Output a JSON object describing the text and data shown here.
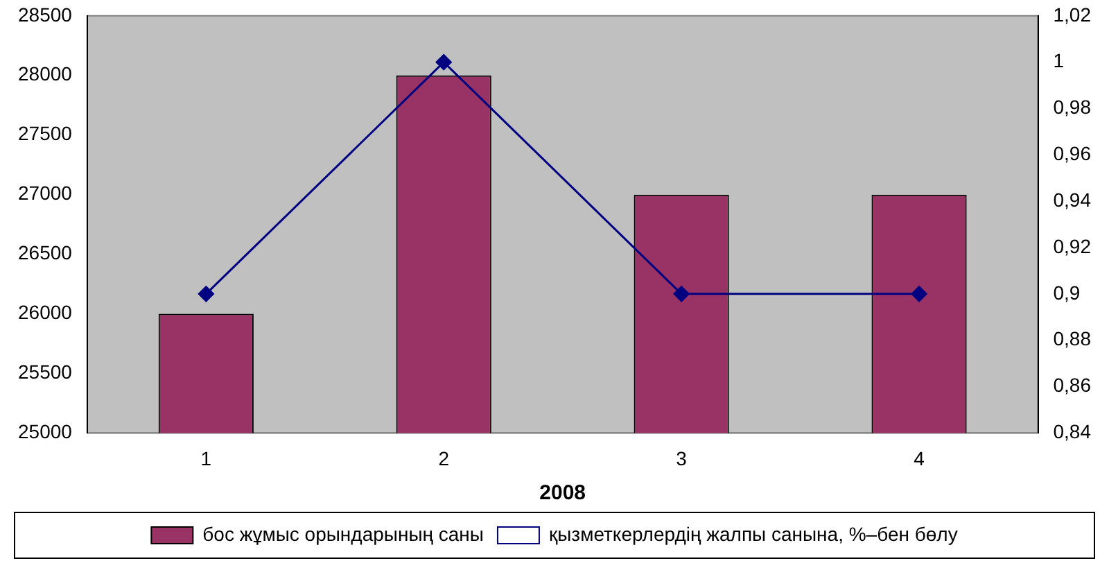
{
  "chart_data": {
    "type": "bar",
    "xlabel": "2008",
    "categories": [
      "1",
      "2",
      "3",
      "4"
    ],
    "series": [
      {
        "name": "бос жұмыс орындарының саны",
        "color": "#993366",
        "values": [
          26000,
          28000,
          27000,
          27000
        ]
      },
      {
        "name": "қызметкерлердің жалпы санына, %–бен бөлу",
        "type": "line",
        "axis": "y2",
        "color": "#000080",
        "marker": "diamond",
        "values": [
          0.9,
          1.0,
          0.9,
          0.9
        ]
      }
    ],
    "ylim": [
      25000,
      28500
    ],
    "yticks": [
      25000,
      25500,
      26000,
      26500,
      27000,
      27500,
      28000,
      28500
    ],
    "y2lim": [
      0.84,
      1.02
    ],
    "y2ticks": [
      {
        "value": 0.84,
        "label": "0,84"
      },
      {
        "value": 0.86,
        "label": "0,86"
      },
      {
        "value": 0.88,
        "label": "0,88"
      },
      {
        "value": 0.9,
        "label": "0,9"
      },
      {
        "value": 0.92,
        "label": "0,92"
      },
      {
        "value": 0.94,
        "label": "0,94"
      },
      {
        "value": 0.96,
        "label": "0,96"
      },
      {
        "value": 0.98,
        "label": "0,98"
      },
      {
        "value": 1,
        "label": "1"
      },
      {
        "value": 1.02,
        "label": "1,02"
      }
    ],
    "grid": false,
    "legend": "bottom"
  }
}
